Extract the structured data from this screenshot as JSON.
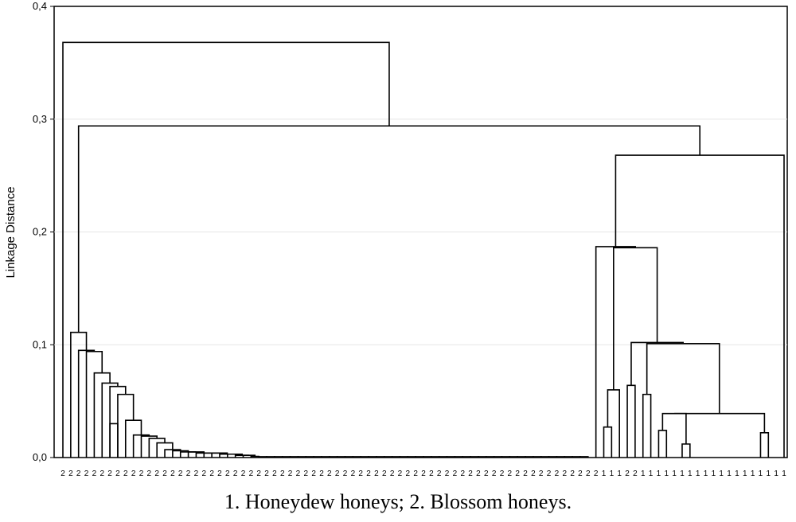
{
  "chart_data": {
    "type": "dendrogram",
    "title": "",
    "ylabel": "Linkage Distance",
    "xlabel": "",
    "ylim": [
      0,
      0.4
    ],
    "yticks": [
      {
        "value": 0.0,
        "label": "0,0"
      },
      {
        "value": 0.1,
        "label": "0,1"
      },
      {
        "value": 0.2,
        "label": "0,2"
      },
      {
        "value": 0.3,
        "label": "0,3"
      },
      {
        "value": 0.4,
        "label": "0,4"
      }
    ],
    "grid": true,
    "leaf_labels": [
      "2",
      "2",
      "2",
      "2",
      "2",
      "2",
      "2",
      "2",
      "2",
      "2",
      "2",
      "2",
      "2",
      "2",
      "2",
      "2",
      "2",
      "2",
      "2",
      "2",
      "2",
      "2",
      "2",
      "2",
      "2",
      "2",
      "2",
      "2",
      "2",
      "2",
      "2",
      "2",
      "2",
      "2",
      "2",
      "2",
      "2",
      "2",
      "2",
      "2",
      "2",
      "2",
      "2",
      "2",
      "2",
      "2",
      "2",
      "2",
      "2",
      "2",
      "2",
      "2",
      "2",
      "2",
      "2",
      "2",
      "2",
      "2",
      "2",
      "2",
      "2",
      "2",
      "2",
      "2",
      "2",
      "2",
      "2",
      "2",
      "2",
      "1",
      "1",
      "1",
      "2",
      "2",
      "1",
      "1",
      "1",
      "1",
      "1",
      "1",
      "1",
      "1",
      "1",
      "1",
      "1",
      "1",
      "1",
      "1",
      "1",
      "1",
      "1",
      "1",
      "1"
    ],
    "merges": [
      {
        "id": "A1",
        "x": [
          0,
          1
        ],
        "h": 0.095
      },
      {
        "id": "A2",
        "x": [
          0,
          2
        ],
        "h": 0.094
      },
      {
        "id": "A3",
        "x": [
          0,
          3
        ],
        "h": 0.075
      },
      {
        "id": "A4",
        "x": [
          5,
          6
        ],
        "h": 0.03
      },
      {
        "id": "A5",
        "x": [
          4,
          5.5
        ],
        "h": 0.066
      },
      {
        "id": "A6",
        "x": [
          0,
          1
        ],
        "h": 0.063
      },
      {
        "id": "A7",
        "x": [
          0,
          1
        ],
        "h": 0.056
      },
      {
        "id": "A8",
        "x": [
          0,
          1
        ],
        "h": 0.033
      },
      {
        "id": "A9",
        "x": [
          0,
          1
        ],
        "h": 0.02
      },
      {
        "id": "A10",
        "x": [
          0,
          1
        ],
        "h": 0.019
      },
      {
        "id": "A11",
        "x": [
          0,
          1
        ],
        "h": 0.017
      },
      {
        "id": "A12",
        "x": [
          0,
          1
        ],
        "h": 0.013
      },
      {
        "id": "B1",
        "x": [
          69,
          70
        ],
        "h": 0.027
      },
      {
        "id": "B2",
        "x": [
          69.5,
          71
        ],
        "h": 0.06
      },
      {
        "id": "B3",
        "x": [
          72,
          73
        ],
        "h": 0.064
      },
      {
        "id": "B4",
        "x": [
          70,
          72.5
        ],
        "h": 0.187
      },
      {
        "id": "B5",
        "x": [
          74,
          75
        ],
        "h": 0.056
      },
      {
        "id": "B6",
        "x": [
          75,
          76
        ],
        "h": 0.039
      },
      {
        "id": "B7",
        "x": [
          76,
          77
        ],
        "h": 0.024
      },
      {
        "id": "B8",
        "x": [
          79,
          80
        ],
        "h": 0.012
      },
      {
        "id": "B9",
        "x": [
          84,
          85
        ],
        "h": 0.022
      },
      {
        "id": "B10",
        "x": [
          76.5,
          84.5
        ],
        "h": 0.101
      },
      {
        "id": "B11",
        "x": [
          73,
          80
        ],
        "h": 0.102
      },
      {
        "id": "B12",
        "x": [
          71,
          76.5
        ],
        "h": 0.186
      },
      {
        "id": "C1",
        "x": [
          69,
          80
        ],
        "h": 0.268
      },
      {
        "id": "C2",
        "x": [
          2,
          75
        ],
        "h": 0.294
      },
      {
        "id": "C3",
        "x": [
          0,
          40
        ],
        "h": 0.368
      }
    ]
  },
  "caption": "1. Honeydew honeys; 2. Blossom honeys."
}
